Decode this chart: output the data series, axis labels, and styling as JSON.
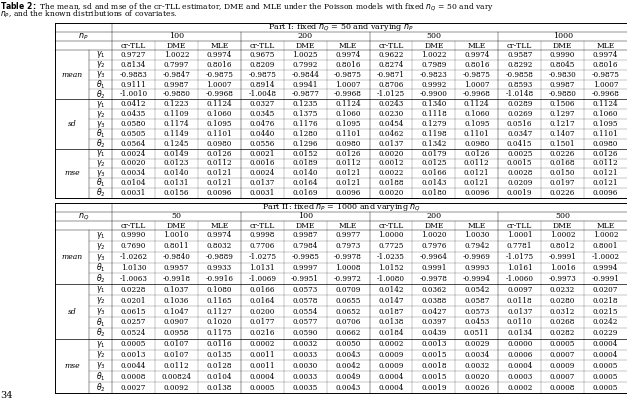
{
  "col_groups_part1": [
    "100",
    "200",
    "500",
    "1000"
  ],
  "col_groups_part2": [
    "50",
    "100",
    "200",
    "500"
  ],
  "sub_cols": [
    "cr-TLL",
    "DME",
    "MLE"
  ],
  "row_groups": [
    "mean",
    "sd",
    "mse"
  ],
  "part1_data": {
    "mean": {
      "100": {
        "cr-TLL": [
          0.9727,
          0.8134,
          -0.9883,
          0.9111,
          -1.001
        ],
        "DME": [
          1.0022,
          0.7997,
          -0.9847,
          0.9987,
          -0.988
        ],
        "MLE": [
          0.9974,
          0.8016,
          -0.9875,
          1.0007,
          -0.9968
        ]
      },
      "200": {
        "cr-TLL": [
          0.9675,
          0.8209,
          -0.9875,
          0.8914,
          -1.0048
        ],
        "DME": [
          1.0025,
          0.7992,
          -0.9844,
          0.9941,
          -0.9877
        ],
        "MLE": [
          0.9974,
          0.8016,
          -0.9875,
          1.0007,
          -0.9968
        ]
      },
      "500": {
        "cr-TLL": [
          0.9622,
          0.8274,
          -0.9871,
          0.8706,
          -1.0125
        ],
        "DME": [
          1.0022,
          0.7989,
          -0.9823,
          0.9992,
          -0.99
        ],
        "MLE": [
          0.9974,
          0.8016,
          -0.9875,
          1.0007,
          -0.9968
        ]
      },
      "1000": {
        "cr-TLL": [
          0.9587,
          0.8292,
          -0.9858,
          0.8593,
          -1.0148
        ],
        "DME": [
          0.999,
          0.8045,
          -0.983,
          0.9987,
          -0.988
        ],
        "MLE": [
          0.9974,
          0.8016,
          -0.9875,
          1.0007,
          -0.9968
        ]
      }
    },
    "sd": {
      "100": {
        "cr-TLL": [
          0.0412,
          0.0435,
          0.058,
          0.0505,
          0.0564
        ],
        "DME": [
          0.1223,
          0.1109,
          0.1174,
          0.1149,
          0.1245
        ],
        "MLE": [
          0.1124,
          0.106,
          0.1095,
          0.1101,
          0.098
        ]
      },
      "200": {
        "cr-TLL": [
          0.0327,
          0.0345,
          0.0476,
          0.044,
          0.0556
        ],
        "DME": [
          0.1235,
          0.1375,
          0.1176,
          0.128,
          0.1296
        ],
        "MLE": [
          0.1124,
          0.106,
          0.1095,
          0.1101,
          0.098
        ]
      },
      "500": {
        "cr-TLL": [
          0.0243,
          0.023,
          0.0454,
          0.0462,
          0.0137
        ],
        "DME": [
          0.134,
          0.1118,
          0.1279,
          0.1198,
          0.1342
        ],
        "MLE": [
          0.1124,
          0.106,
          0.1095,
          0.1101,
          0.098
        ]
      },
      "1000": {
        "cr-TLL": [
          0.0289,
          0.0269,
          0.0516,
          0.0347,
          0.0415
        ],
        "DME": [
          0.1506,
          0.1297,
          0.1217,
          0.1407,
          0.1501
        ],
        "MLE": [
          0.1124,
          0.106,
          0.1095,
          0.1101,
          0.098
        ]
      }
    },
    "mse": {
      "100": {
        "cr-TLL": [
          0.0024,
          0.002,
          0.0034,
          0.0104,
          0.0031
        ],
        "DME": [
          0.0149,
          0.0123,
          0.014,
          0.0131,
          0.0156
        ],
        "MLE": [
          0.0126,
          0.0112,
          0.0121,
          0.0121,
          0.0096
        ]
      },
      "200": {
        "cr-TLL": [
          0.0021,
          0.0016,
          0.0024,
          0.0137,
          0.0031
        ],
        "DME": [
          0.0152,
          0.0189,
          0.014,
          0.0164,
          0.0169
        ],
        "MLE": [
          0.0126,
          0.0112,
          0.0121,
          0.0121,
          0.0096
        ]
      },
      "500": {
        "cr-TLL": [
          0.002,
          0.0012,
          0.0022,
          0.0188,
          0.002
        ],
        "DME": [
          0.0179,
          0.0125,
          0.0166,
          0.0143,
          0.018
        ],
        "MLE": [
          0.0126,
          0.0112,
          0.0121,
          0.0121,
          0.0096
        ]
      },
      "1000": {
        "cr-TLL": [
          0.0025,
          0.0015,
          0.0028,
          0.0209,
          0.0019
        ],
        "DME": [
          0.0226,
          0.0168,
          0.015,
          0.0197,
          0.0226
        ],
        "MLE": [
          0.0126,
          0.0112,
          0.0121,
          0.0121,
          0.0096
        ]
      }
    }
  },
  "part2_data": {
    "mean": {
      "50": {
        "cr-TLL": [
          0.999,
          0.769,
          -1.0262,
          1.013,
          -1.0063
        ],
        "DME": [
          1.001,
          0.8011,
          -0.984,
          0.9957,
          -0.9918
        ],
        "MLE": [
          0.9974,
          0.8032,
          -0.9889,
          0.9933,
          -0.9916
        ]
      },
      "100": {
        "cr-TLL": [
          0.9998,
          0.7706,
          -1.0275,
          1.0131,
          -1.0069
        ],
        "DME": [
          0.9987,
          0.7984,
          -0.9985,
          0.9997,
          -0.9951
        ],
        "MLE": [
          0.9977,
          0.7973,
          -0.9978,
          1.0008,
          -0.9972
        ]
      },
      "200": {
        "cr-TLL": [
          1.0,
          0.7725,
          -1.0235,
          1.0152,
          -1.008
        ],
        "DME": [
          1.002,
          0.7976,
          -0.9964,
          0.9991,
          -0.9978
        ],
        "MLE": [
          1.003,
          0.7942,
          -0.9969,
          0.9993,
          -0.9994
        ]
      },
      "500": {
        "cr-TLL": [
          1.0001,
          0.7781,
          -1.0175,
          1.0161,
          -1.006
        ],
        "DME": [
          1.0002,
          0.8012,
          -0.9991,
          1.0016,
          -0.9973
        ],
        "MLE": [
          1.0002,
          0.8001,
          -1.0002,
          0.9994,
          -0.9991
        ]
      }
    },
    "sd": {
      "50": {
        "cr-TLL": [
          0.0228,
          0.0201,
          0.0615,
          0.0257,
          0.0524
        ],
        "DME": [
          0.1037,
          0.1036,
          0.1047,
          0.0907,
          0.0958
        ],
        "MLE": [
          0.108,
          0.1165,
          0.1127,
          0.102,
          0.1175
        ]
      },
      "100": {
        "cr-TLL": [
          0.0166,
          0.0164,
          0.02,
          0.0177,
          0.0216
        ],
        "DME": [
          0.0573,
          0.0578,
          0.0554,
          0.0577,
          0.059
        ],
        "MLE": [
          0.0709,
          0.0655,
          0.0652,
          0.0706,
          0.0662
        ]
      },
      "200": {
        "cr-TLL": [
          0.0142,
          0.0147,
          0.0187,
          0.0138,
          0.0184
        ],
        "DME": [
          0.0362,
          0.0388,
          0.0427,
          0.0397,
          0.0439
        ],
        "MLE": [
          0.0542,
          0.0587,
          0.0573,
          0.0453,
          0.0511
        ]
      },
      "500": {
        "cr-TLL": [
          0.0097,
          0.0118,
          0.0137,
          0.011,
          0.0134
        ],
        "DME": [
          0.0232,
          0.028,
          0.0312,
          0.0268,
          0.0282
        ],
        "MLE": [
          0.0207,
          0.0218,
          0.0215,
          0.0242,
          0.0229
        ]
      }
    },
    "mse": {
      "50": {
        "cr-TLL": [
          0.0005,
          0.0013,
          0.0044,
          0.0008,
          0.0027
        ],
        "DME": [
          0.0107,
          0.0107,
          0.0112,
          "0.00824",
          0.0092
        ],
        "MLE": [
          0.0116,
          0.0135,
          0.0128,
          0.0104,
          0.0138
        ]
      },
      "100": {
        "cr-TLL": [
          0.0002,
          0.0011,
          0.0011,
          0.0004,
          0.0005
        ],
        "DME": [
          0.0032,
          0.0033,
          0.003,
          0.0033,
          0.0035
        ],
        "MLE": [
          0.005,
          0.0043,
          0.0042,
          0.0049,
          0.0043
        ]
      },
      "200": {
        "cr-TLL": [
          0.0002,
          0.0009,
          0.0009,
          0.0004,
          0.0004
        ],
        "DME": [
          0.0013,
          0.0015,
          0.0018,
          0.0015,
          0.0019
        ],
        "MLE": [
          0.0029,
          0.0034,
          0.0032,
          0.002,
          0.0026
        ]
      },
      "500": {
        "cr-TLL": [
          0.0,
          0.0006,
          0.0004,
          0.0003,
          0.0002
        ],
        "DME": [
          0.0005,
          0.0007,
          0.0009,
          0.0007,
          0.0008
        ],
        "MLE": [
          0.0004,
          0.0004,
          0.0005,
          0.0005,
          0.0005
        ]
      }
    }
  }
}
